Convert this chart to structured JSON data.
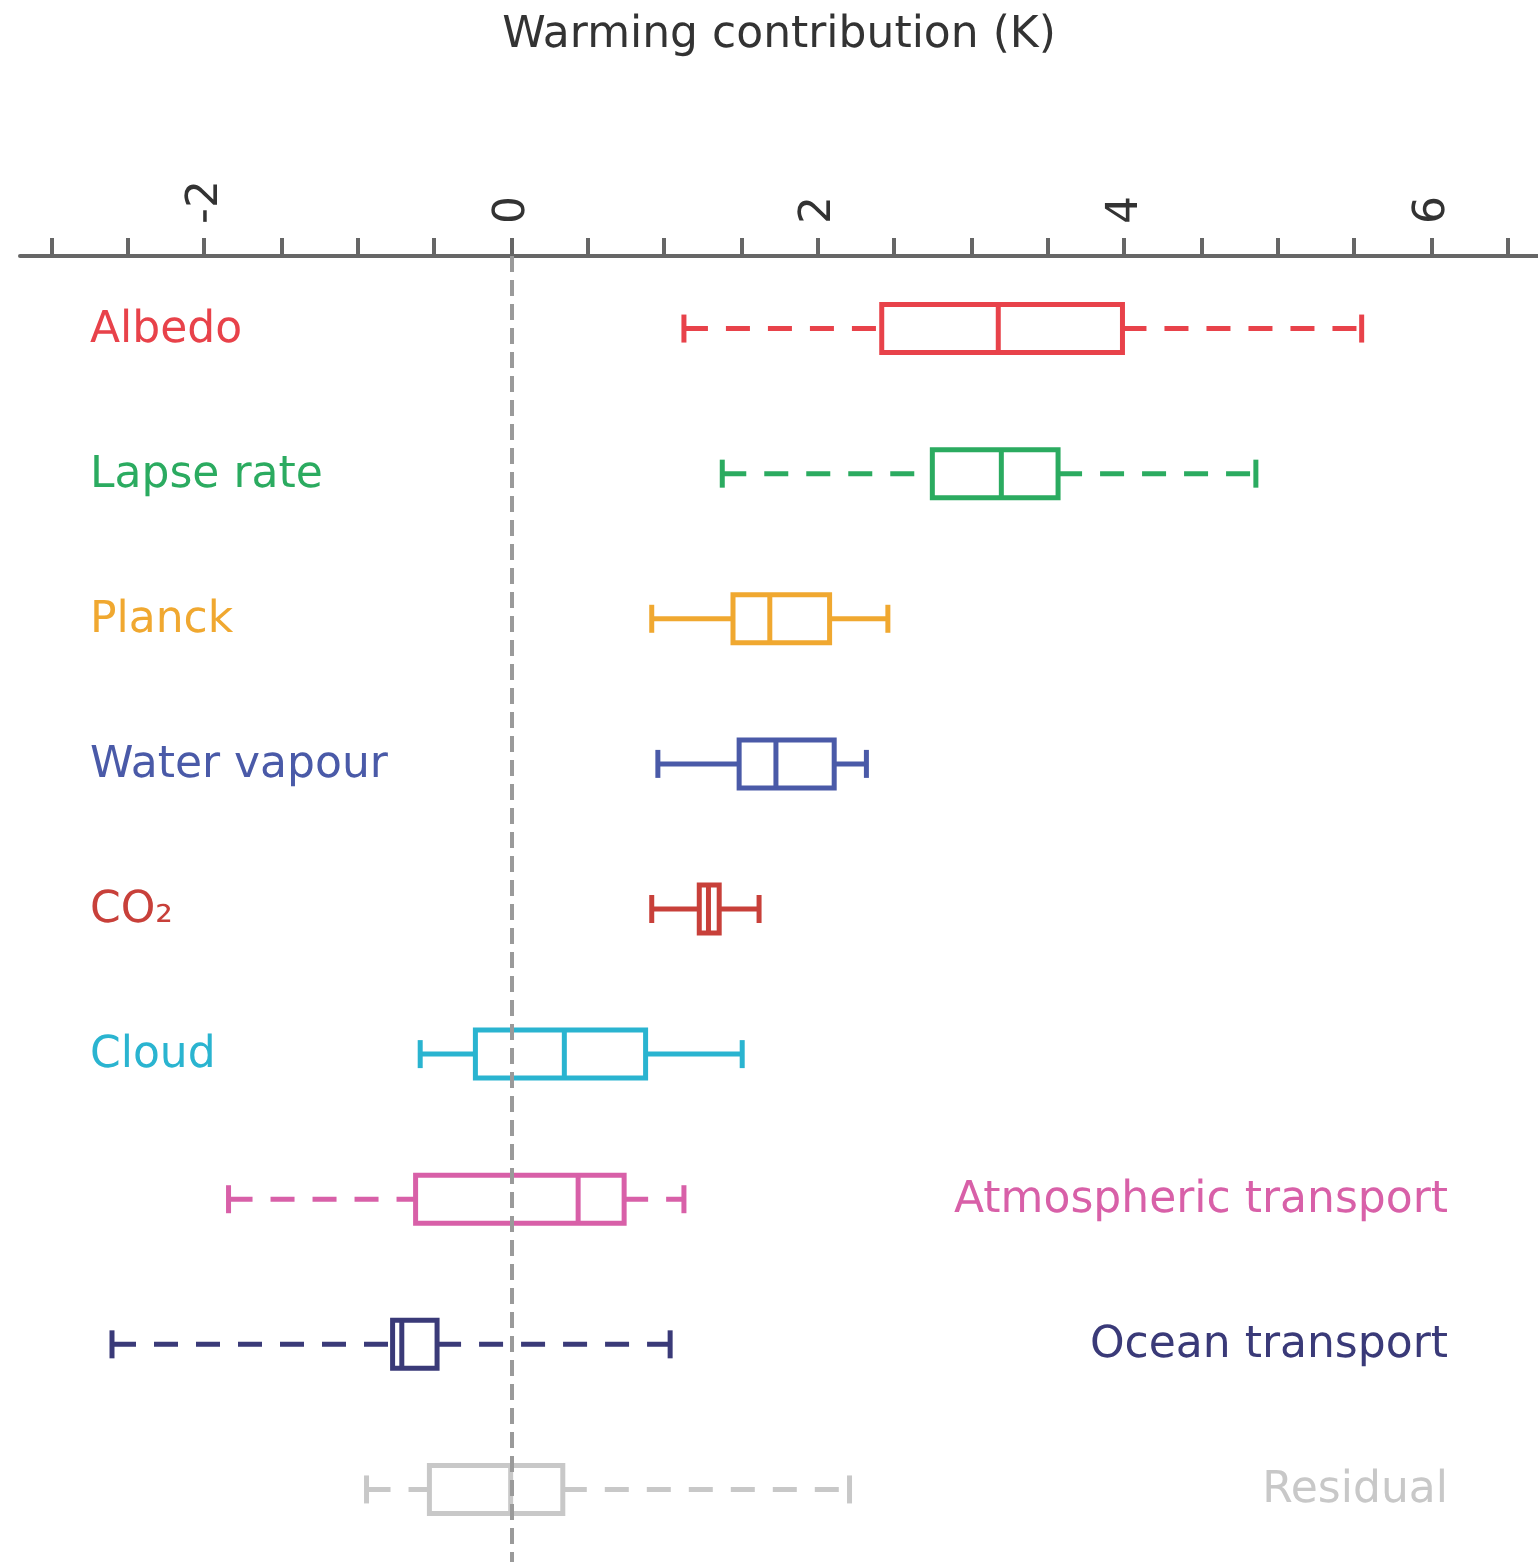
{
  "chart_data": {
    "type": "box",
    "orientation": "horizontal",
    "xlabel": "Warming contribution (K)",
    "categories": [
      "Albedo",
      "Lapse rate",
      "Planck",
      "Water vapour",
      "CO₂",
      "Cloud",
      "Atmospheric transport",
      "Ocean transport",
      "Residual"
    ],
    "xlim": [
      -3.2,
      6.7
    ],
    "xticks": [
      {
        "value": -3,
        "label": null
      },
      {
        "value": -2.5,
        "label": null
      },
      -2,
      {
        "value": -1.5,
        "label": null
      },
      {
        "value": -1,
        "label": null
      },
      {
        "value": -0.5,
        "label": null
      },
      0,
      {
        "value": 0.5,
        "label": null
      },
      {
        "value": 1,
        "label": null
      },
      {
        "value": 1.5,
        "label": null
      },
      2,
      {
        "value": 2.5,
        "label": null
      },
      {
        "value": 3,
        "label": null
      },
      {
        "value": 3.5,
        "label": null
      },
      4,
      {
        "value": 4.5,
        "label": null
      },
      {
        "value": 5,
        "label": null
      },
      {
        "value": 5.5,
        "label": null
      },
      6,
      {
        "value": 6.5,
        "label": null
      }
    ],
    "ref_lines": [
      {
        "axis": "x",
        "value": 0,
        "color": "#9a9a9a",
        "line_style": "dashed"
      }
    ],
    "series": [
      {
        "color": "#e8424a",
        "line_style": "dashed",
        "boxes": [
          {
            "low": 1.13,
            "q1": 2.42,
            "median": 3.18,
            "q3": 3.99,
            "high": 5.55
          },
          null,
          null,
          null,
          null,
          null,
          null,
          null,
          null
        ]
      },
      {
        "color": "#2bab60",
        "line_style": "dashed",
        "boxes": [
          null,
          {
            "low": 1.38,
            "q1": 2.75,
            "median": 3.2,
            "q3": 3.57,
            "high": 4.86
          },
          null,
          null,
          null,
          null,
          null,
          null,
          null
        ]
      },
      {
        "color": "#f0a830",
        "line_style": "solid",
        "boxes": [
          null,
          null,
          {
            "low": 0.92,
            "q1": 1.45,
            "median": 1.69,
            "q3": 2.08,
            "high": 2.46
          },
          null,
          null,
          null,
          null,
          null,
          null
        ]
      },
      {
        "color": "#4a5aa8",
        "line_style": "solid",
        "boxes": [
          null,
          null,
          null,
          {
            "low": 0.96,
            "q1": 1.49,
            "median": 1.73,
            "q3": 2.11,
            "high": 2.32
          },
          null,
          null,
          null,
          null,
          null
        ]
      },
      {
        "color": "#c8403a",
        "line_style": "solid",
        "boxes": [
          null,
          null,
          null,
          null,
          {
            "low": 0.92,
            "q1": 1.23,
            "median": 1.29,
            "q3": 1.36,
            "high": 1.62
          },
          null,
          null,
          null,
          null
        ]
      },
      {
        "color": "#2ab4d0",
        "line_style": "solid",
        "boxes": [
          null,
          null,
          null,
          null,
          null,
          {
            "low": -0.59,
            "q1": -0.23,
            "median": 0.35,
            "q3": 0.88,
            "high": 1.51
          },
          null,
          null,
          null
        ]
      },
      {
        "color": "#d860a8",
        "line_style": "dashed",
        "boxes": [
          null,
          null,
          null,
          null,
          null,
          null,
          {
            "low": -1.84,
            "q1": -0.62,
            "median": 0.44,
            "q3": 0.74,
            "high": 1.13
          },
          null,
          null
        ]
      },
      {
        "color": "#3a3a78",
        "line_style": "dashed",
        "boxes": [
          null,
          null,
          null,
          null,
          null,
          null,
          null,
          {
            "low": -2.6,
            "q1": -0.77,
            "median": -0.71,
            "q3": -0.48,
            "high": 1.04
          },
          null
        ]
      },
      {
        "color": "#c8c8c8",
        "line_style": "dashed",
        "boxes": [
          null,
          null,
          null,
          null,
          null,
          null,
          null,
          null,
          {
            "low": -0.94,
            "q1": -0.53,
            "median": 0,
            "q3": 0.34,
            "high": 2.21
          }
        ]
      }
    ]
  }
}
